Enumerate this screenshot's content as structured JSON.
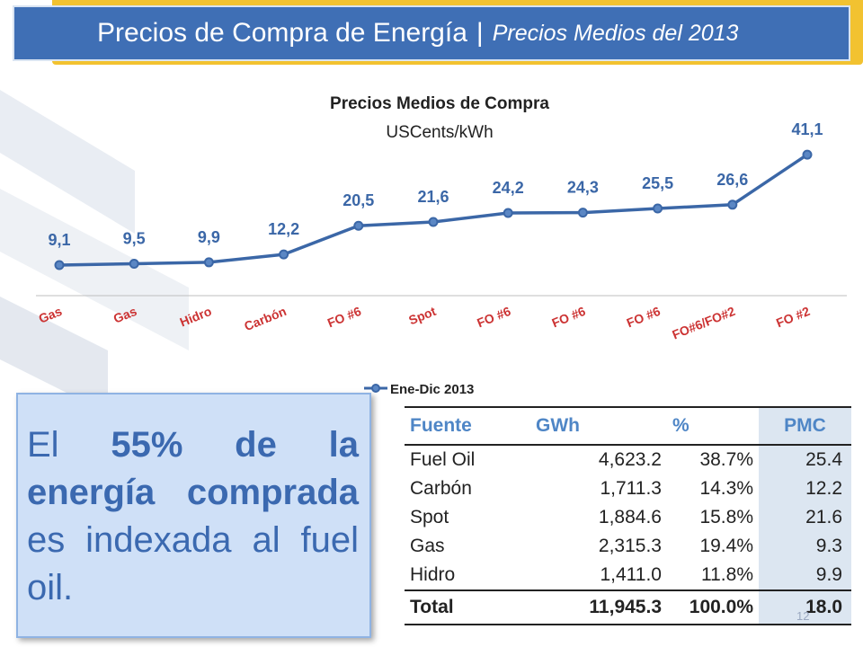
{
  "header": {
    "title": "Precios de Compra de Energía",
    "separator": "|",
    "subtitle": "Precios Medios del 2013"
  },
  "colors": {
    "header_bg": "#3f6fb5",
    "header_accent": "#f2c230",
    "series": "#3b67a7",
    "callout_bg": "#cfe0f7",
    "table_header": "#4f86c6"
  },
  "chart_data": {
    "type": "line",
    "title": "Precios Medios de Compra",
    "subtitle": "USCents/kWh",
    "categories": [
      "Gas",
      "Gas",
      "Hidro",
      "Carbón",
      "FO #6",
      "Spot",
      "FO #6",
      "FO #6",
      "FO #6",
      "FO#6/FO#2",
      "FO #2"
    ],
    "series": [
      {
        "name": "Ene-Dic 2013",
        "values": [
          9.1,
          9.5,
          9.9,
          12.2,
          20.5,
          21.6,
          24.2,
          24.3,
          25.5,
          26.6,
          41.1
        ]
      }
    ],
    "data_labels": [
      "9,1",
      "9,5",
      "9,9",
      "12,2",
      "20,5",
      "21,6",
      "24,2",
      "24,3",
      "25,5",
      "26,6",
      "41,1"
    ],
    "legend_position": "bottom",
    "grid": false
  },
  "callout": {
    "w1": "El",
    "w2": "55%",
    "w3": "de la energía comprada",
    "w4": "es indexada al fuel oil."
  },
  "table": {
    "headers": [
      "Fuente",
      "GWh",
      "%",
      "PMC"
    ],
    "rows": [
      [
        "Fuel Oil",
        "4,623.2",
        "38.7%",
        "25.4"
      ],
      [
        "Carbón",
        "1,711.3",
        "14.3%",
        "12.2"
      ],
      [
        "Spot",
        "1,884.6",
        "15.8%",
        "21.6"
      ],
      [
        "Gas",
        "2,315.3",
        "19.4%",
        "9.3"
      ],
      [
        "Hidro",
        "1,411.0",
        "11.8%",
        "9.9"
      ]
    ],
    "total": [
      "Total",
      "11,945.3",
      "100.0%",
      "18.0"
    ]
  },
  "page_number": "12"
}
